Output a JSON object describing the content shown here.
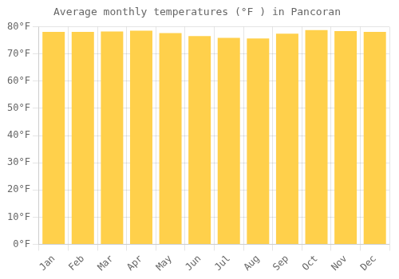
{
  "chart_data": {
    "type": "bar",
    "title": "Average monthly temperatures (°F ) in Pancoran",
    "categories": [
      "Jan",
      "Feb",
      "Mar",
      "Apr",
      "May",
      "Jun",
      "Jul",
      "Aug",
      "Sep",
      "Oct",
      "Nov",
      "Dec"
    ],
    "values": [
      78.1,
      78.1,
      78.3,
      78.6,
      77.7,
      76.6,
      75.9,
      75.7,
      77.5,
      78.8,
      78.4,
      78.1
    ],
    "color": "#FFD04B",
    "ylim": [
      0,
      80
    ],
    "yticks": [
      {
        "value": 0,
        "label": "0°F"
      },
      {
        "value": 10,
        "label": "10°F"
      },
      {
        "value": 20,
        "label": "20°F"
      },
      {
        "value": 30,
        "label": "30°F"
      },
      {
        "value": 40,
        "label": "40°F"
      },
      {
        "value": 50,
        "label": "50°F"
      },
      {
        "value": 60,
        "label": "60°F"
      },
      {
        "value": 70,
        "label": "70°F"
      },
      {
        "value": 80,
        "label": "80°F"
      }
    ],
    "grid": true
  }
}
